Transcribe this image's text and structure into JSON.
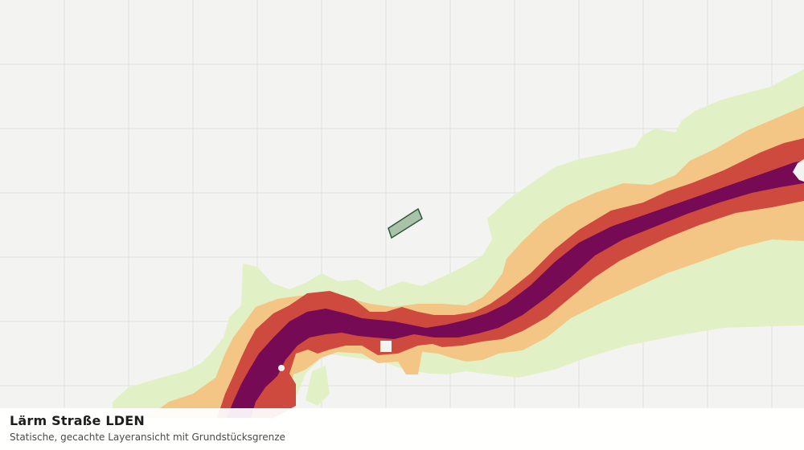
{
  "caption": {
    "title": "Lärm Straße LDEN",
    "subtitle": "Statische, gecachte Layeransicht mit Grundstücksgrenze"
  },
  "colors": {
    "background": "#f3f4f2",
    "grid": "#e0e1de",
    "noise_band_outer": "#e2f0c6",
    "noise_band_2": "#f4c686",
    "noise_band_3": "#cf4a3e",
    "noise_band_core": "#760a55",
    "parcel_fill": "#a9c2a9",
    "parcel_stroke": "#2d5a35"
  }
}
